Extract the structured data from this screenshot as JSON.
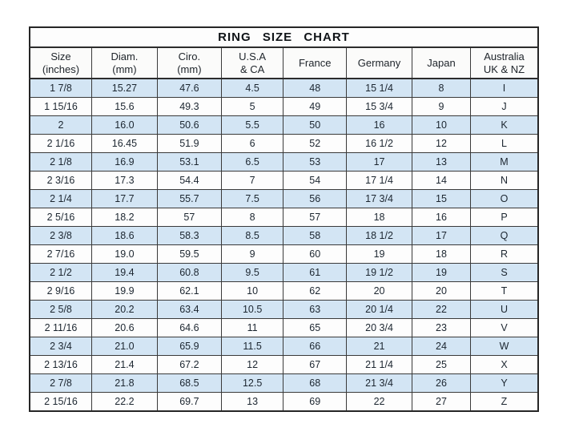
{
  "chart_data": {
    "type": "table",
    "title": "RING SIZE CHART",
    "columns": [
      {
        "key": "size-inches",
        "lines": [
          "Size",
          "(inches)"
        ]
      },
      {
        "key": "diam-mm",
        "lines": [
          "Diam.",
          "(mm)"
        ]
      },
      {
        "key": "ciro-mm",
        "lines": [
          "Ciro.",
          "(mm)"
        ]
      },
      {
        "key": "usa-ca",
        "lines": [
          "U.S.A",
          "& CA"
        ]
      },
      {
        "key": "france",
        "lines": [
          "France"
        ]
      },
      {
        "key": "germany",
        "lines": [
          "Germany"
        ]
      },
      {
        "key": "japan",
        "lines": [
          "Japan"
        ]
      },
      {
        "key": "australia-uk-nz",
        "lines": [
          "Australia",
          "UK & NZ"
        ]
      }
    ],
    "rows": [
      [
        "1 7/8",
        "15.27",
        "47.6",
        "4.5",
        "48",
        "15 1/4",
        "8",
        "I"
      ],
      [
        "1 15/16",
        "15.6",
        "49.3",
        "5",
        "49",
        "15 3/4",
        "9",
        "J"
      ],
      [
        "2",
        "16.0",
        "50.6",
        "5.5",
        "50",
        "16",
        "10",
        "K"
      ],
      [
        "2 1/16",
        "16.45",
        "51.9",
        "6",
        "52",
        "16 1/2",
        "12",
        "L"
      ],
      [
        "2 1/8",
        "16.9",
        "53.1",
        "6.5",
        "53",
        "17",
        "13",
        "M"
      ],
      [
        "2 3/16",
        "17.3",
        "54.4",
        "7",
        "54",
        "17 1/4",
        "14",
        "N"
      ],
      [
        "2 1/4",
        "17.7",
        "55.7",
        "7.5",
        "56",
        "17 3/4",
        "15",
        "O"
      ],
      [
        "2 5/16",
        "18.2",
        "57",
        "8",
        "57",
        "18",
        "16",
        "P"
      ],
      [
        "2 3/8",
        "18.6",
        "58.3",
        "8.5",
        "58",
        "18 1/2",
        "17",
        "Q"
      ],
      [
        "2 7/16",
        "19.0",
        "59.5",
        "9",
        "60",
        "19",
        "18",
        "R"
      ],
      [
        "2 1/2",
        "19.4",
        "60.8",
        "9.5",
        "61",
        "19 1/2",
        "19",
        "S"
      ],
      [
        "2 9/16",
        "19.9",
        "62.1",
        "10",
        "62",
        "20",
        "20",
        "T"
      ],
      [
        "2 5/8",
        "20.2",
        "63.4",
        "10.5",
        "63",
        "20 1/4",
        "22",
        "U"
      ],
      [
        "2 11/16",
        "20.6",
        "64.6",
        "11",
        "65",
        "20 3/4",
        "23",
        "V"
      ],
      [
        "2 3/4",
        "21.0",
        "65.9",
        "11.5",
        "66",
        "21",
        "24",
        "W"
      ],
      [
        "2 13/16",
        "21.4",
        "67.2",
        "12",
        "67",
        "21 1/4",
        "25",
        "X"
      ],
      [
        "2 7/8",
        "21.8",
        "68.5",
        "12.5",
        "68",
        "21 3/4",
        "26",
        "Y"
      ],
      [
        "2 15/16",
        "22.2",
        "69.7",
        "13",
        "69",
        "22",
        "27",
        "Z"
      ]
    ],
    "column_width_percents": [
      12.2,
      12.9,
      12.6,
      12.2,
      12.4,
      12.9,
      11.5,
      13.3
    ],
    "layout_hints": {
      "striped": true,
      "stripe_start": "first-data-row"
    },
    "colors": {
      "row_highlight": "#d3e5f4",
      "row_plain": "#fdfdfd",
      "border": "#3a3a3a",
      "text": "#1c2630"
    }
  }
}
